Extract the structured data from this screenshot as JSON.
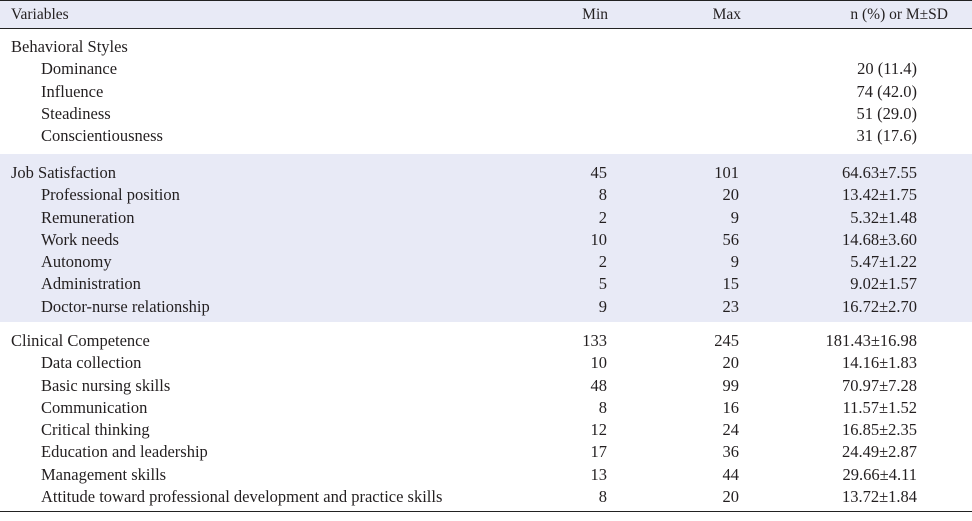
{
  "header": {
    "variables": "Variables",
    "min": "Min",
    "max": "Max",
    "stat": "n (%) or M±SD"
  },
  "sections": [
    {
      "title": {
        "label": "Behavioral Styles",
        "min": "",
        "max": "",
        "stat": ""
      },
      "rows": [
        {
          "label": "Dominance",
          "min": "",
          "max": "",
          "stat": "20 (11.4)"
        },
        {
          "label": "Influence",
          "min": "",
          "max": "",
          "stat": "74 (42.0)"
        },
        {
          "label": "Steadiness",
          "min": "",
          "max": "",
          "stat": "51 (29.0)"
        },
        {
          "label": "Conscientiousness",
          "min": "",
          "max": "",
          "stat": "31 (17.6)"
        }
      ]
    },
    {
      "title": {
        "label": "Job Satisfaction",
        "min": "45",
        "max": "101",
        "stat": "64.63±7.55"
      },
      "rows": [
        {
          "label": "Professional position",
          "min": "8",
          "max": "20",
          "stat": "13.42±1.75"
        },
        {
          "label": "Remuneration",
          "min": "2",
          "max": "9",
          "stat": "5.32±1.48"
        },
        {
          "label": "Work needs",
          "min": "10",
          "max": "56",
          "stat": "14.68±3.60"
        },
        {
          "label": "Autonomy",
          "min": "2",
          "max": "9",
          "stat": "5.47±1.22"
        },
        {
          "label": "Administration",
          "min": "5",
          "max": "15",
          "stat": "9.02±1.57"
        },
        {
          "label": "Doctor-nurse relationship",
          "min": "9",
          "max": "23",
          "stat": "16.72±2.70"
        }
      ]
    },
    {
      "title": {
        "label": "Clinical Competence",
        "min": "133",
        "max": "245",
        "stat": "181.43±16.98"
      },
      "rows": [
        {
          "label": "Data collection",
          "min": "10",
          "max": "20",
          "stat": "14.16±1.83"
        },
        {
          "label": "Basic nursing skills",
          "min": "48",
          "max": "99",
          "stat": "70.97±7.28"
        },
        {
          "label": "Communication",
          "min": "8",
          "max": "16",
          "stat": "11.57±1.52"
        },
        {
          "label": "Critical thinking",
          "min": "12",
          "max": "24",
          "stat": "16.85±2.35"
        },
        {
          "label": "Education and leadership",
          "min": "17",
          "max": "36",
          "stat": "24.49±2.87"
        },
        {
          "label": "Management skills",
          "min": "13",
          "max": "44",
          "stat": "29.66±4.11"
        },
        {
          "label": "Attitude toward professional development and practice skills",
          "min": "8",
          "max": "20",
          "stat": "13.72±1.84"
        }
      ]
    }
  ]
}
